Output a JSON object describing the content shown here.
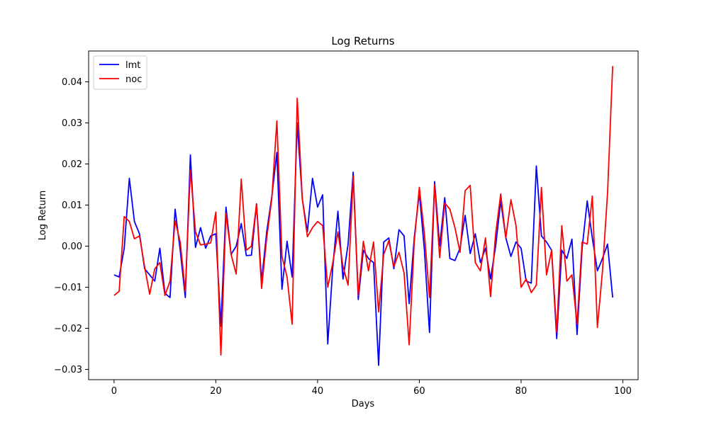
{
  "chart_data": {
    "type": "line",
    "title": "Log Returns",
    "xlabel": "Days",
    "ylabel": "Log Return",
    "xlim": [
      -5,
      103
    ],
    "ylim": [
      -0.0325,
      0.0475
    ],
    "xticks": [
      0,
      20,
      40,
      60,
      80,
      100
    ],
    "yticks": [
      -0.03,
      -0.02,
      -0.01,
      0.0,
      0.01,
      0.02,
      0.03,
      0.04
    ],
    "ytick_labels": [
      "−0.03",
      "−0.02",
      "−0.01",
      "0.00",
      "0.01",
      "0.02",
      "0.03",
      "0.04"
    ],
    "grid": false,
    "legend_position": "top-left",
    "series": [
      {
        "name": "lmt",
        "color": "#0000ff",
        "values": [
          -0.007,
          -0.0075,
          -0.0005,
          0.0165,
          0.006,
          0.003,
          -0.0055,
          -0.007,
          -0.0085,
          -0.0005,
          -0.0115,
          -0.0125,
          0.009,
          -0.001,
          -0.0125,
          0.0222,
          -0.0003,
          0.0045,
          -0.0005,
          0.0025,
          0.003,
          -0.0195,
          0.0095,
          -0.002,
          0.0,
          0.0055,
          -0.0023,
          -0.0022,
          0.0103,
          -0.0085,
          0.0035,
          0.012,
          0.0228,
          -0.0105,
          0.0012,
          -0.0075,
          0.03,
          0.0115,
          0.0035,
          0.0165,
          0.0095,
          0.0125,
          -0.0238,
          -0.005,
          0.0085,
          -0.008,
          0.0005,
          0.018,
          -0.013,
          -0.001,
          -0.003,
          -0.004,
          -0.029,
          0.001,
          0.002,
          -0.0055,
          0.004,
          0.0025,
          -0.014,
          0.002,
          0.013,
          -0.001,
          -0.021,
          0.0157,
          0.0,
          0.0118,
          -0.003,
          -0.0035,
          -0.0005,
          0.0075,
          -0.0018,
          0.003,
          -0.004,
          -0.0005,
          -0.008,
          0.0,
          0.011,
          0.002,
          -0.0025,
          0.001,
          -0.0005,
          -0.0085,
          -0.009,
          0.0195,
          0.0025,
          0.001,
          -0.001,
          -0.0225,
          -0.001,
          -0.003,
          0.0017,
          -0.0215,
          -0.0005,
          0.011,
          0.002,
          -0.006,
          -0.003,
          0.0005,
          -0.0125
        ]
      },
      {
        "name": "noc",
        "color": "#ff0000",
        "values": [
          -0.012,
          -0.011,
          0.0072,
          0.006,
          0.0018,
          0.0025,
          -0.005,
          -0.0117,
          -0.0055,
          -0.004,
          -0.012,
          -0.0085,
          0.0062,
          0.001,
          -0.011,
          0.0185,
          0.0035,
          0.0003,
          0.0005,
          0.0008,
          0.0083,
          -0.0265,
          0.008,
          -0.002,
          -0.0068,
          0.0163,
          -0.001,
          0.0,
          0.0103,
          -0.0103,
          0.002,
          0.0115,
          0.0305,
          -0.0025,
          -0.0075,
          -0.019,
          0.036,
          0.0115,
          0.0023,
          0.0045,
          0.006,
          0.005,
          -0.01,
          -0.004,
          0.0035,
          -0.005,
          -0.0095,
          0.017,
          -0.012,
          0.0012,
          -0.006,
          0.001,
          -0.016,
          -0.002,
          0.0013,
          -0.005,
          -0.0015,
          -0.0065,
          -0.024,
          0.001,
          0.0143,
          0.003,
          -0.0125,
          0.015,
          -0.0028,
          0.0105,
          0.009,
          0.0045,
          -0.0015,
          0.0135,
          0.0148,
          -0.004,
          -0.006,
          0.002,
          -0.0123,
          0.003,
          0.0127,
          0.002,
          0.0113,
          0.005,
          -0.01,
          -0.008,
          -0.0113,
          -0.0095,
          0.0143,
          -0.007,
          -0.001,
          -0.021,
          0.005,
          -0.0085,
          -0.007,
          -0.019,
          0.001,
          0.0005,
          0.0122,
          -0.0198,
          -0.006,
          0.013,
          0.0438
        ]
      }
    ]
  }
}
